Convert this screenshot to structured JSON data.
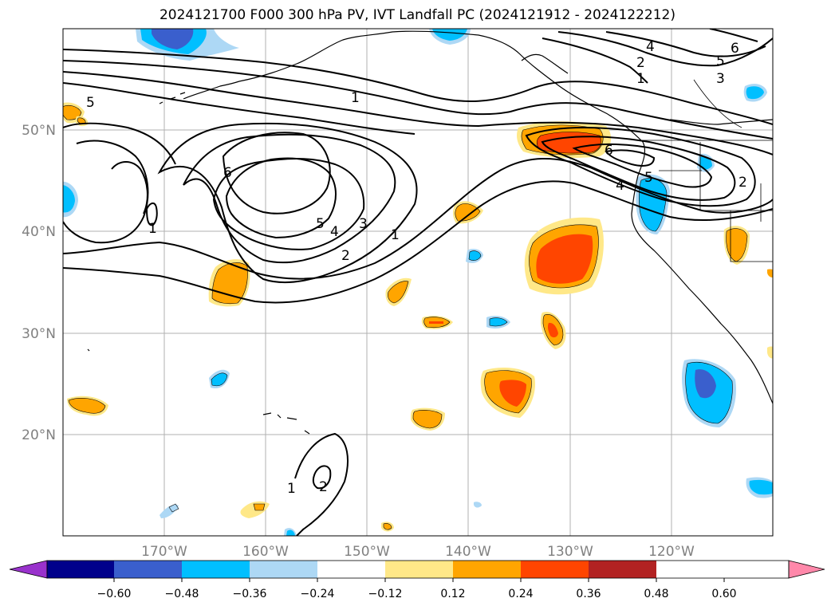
{
  "title": "2024121700 F000 300 hPa PV, IVT Landfall PC (2024121912 - 2024122212)",
  "map": {
    "projection": "PlateCarree",
    "lon_range": [
      -180,
      -110
    ],
    "lat_range": [
      10,
      60
    ],
    "gridlines": true,
    "lon_ticks": [
      "170°W",
      "160°W",
      "150°W",
      "140°W",
      "130°W",
      "120°W"
    ],
    "lat_ticks": [
      "50°N",
      "40°N",
      "30°N",
      "20°N"
    ]
  },
  "pv_contours": {
    "levels": [
      1,
      2,
      3,
      4,
      5,
      6
    ],
    "labels": [
      "1",
      "1",
      "1",
      "1",
      "1",
      "2",
      "2",
      "2",
      "2",
      "3",
      "3",
      "4",
      "4",
      "4",
      "5",
      "5",
      "5",
      "5",
      "6",
      "6",
      "6"
    ]
  },
  "colorbar": {
    "extend": "both",
    "tick_labels": [
      "−0.60",
      "−0.48",
      "−0.36",
      "−0.24",
      "−0.12",
      "0.12",
      "0.24",
      "0.36",
      "0.48",
      "0.60"
    ],
    "colors": [
      "#9932cc",
      "#00008b",
      "#3a5fcd",
      "#00bfff",
      "#add8f5",
      "#ffffff",
      "#ffe888",
      "#ffa500",
      "#ff4500",
      "#b22222",
      "#ff88aa"
    ]
  }
}
